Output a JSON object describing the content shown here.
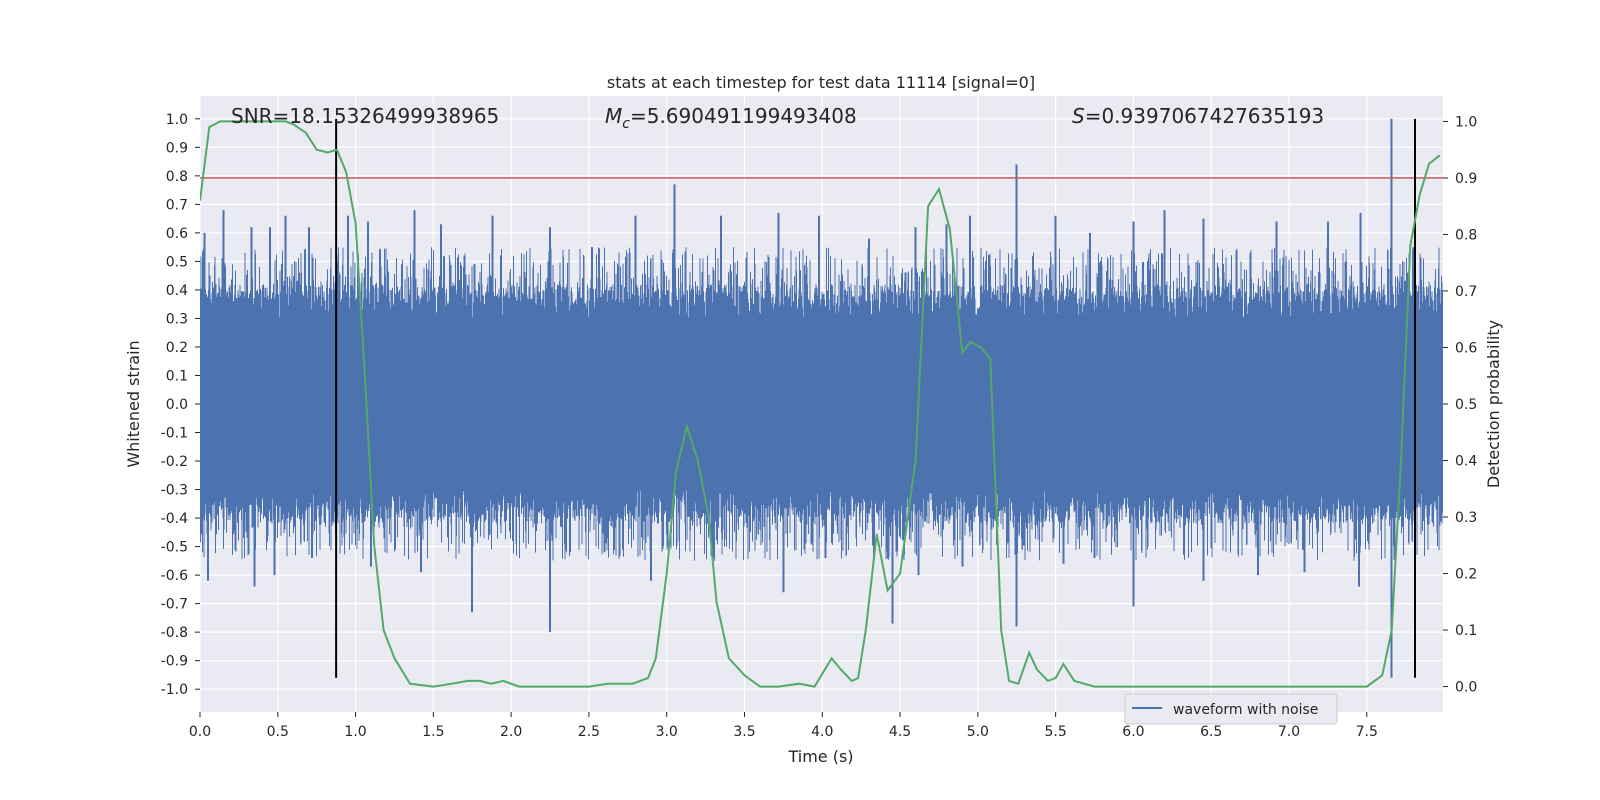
{
  "chart_data": {
    "type": "line",
    "title": "stats at each timestep for test data 11114 [signal=0]",
    "xlabel": "Time (s)",
    "ylabel": "Whitened strain",
    "y2label": "Detection probability",
    "xlim": [
      0.0,
      7.99
    ],
    "ylim": [
      -1.08,
      1.08
    ],
    "y2lim": [
      -0.045,
      1.045
    ],
    "xticks": [
      "0.0",
      "0.5",
      "1.0",
      "1.5",
      "2.0",
      "2.5",
      "3.0",
      "3.5",
      "4.0",
      "4.5",
      "5.0",
      "5.5",
      "6.0",
      "6.5",
      "7.0",
      "7.5"
    ],
    "yticks": [
      "-1.0",
      "-0.9",
      "-0.8",
      "-0.7",
      "-0.6",
      "-0.5",
      "-0.4",
      "-0.3",
      "-0.2",
      "-0.1",
      "0.0",
      "0.1",
      "0.2",
      "0.3",
      "0.4",
      "0.5",
      "0.6",
      "0.7",
      "0.8",
      "0.9",
      "1.0"
    ],
    "y2ticks": [
      "0.0",
      "0.1",
      "0.2",
      "0.3",
      "0.4",
      "0.5",
      "0.6",
      "0.7",
      "0.8",
      "0.9",
      "1.0"
    ],
    "grid": true,
    "legend": {
      "placement": "lower-right",
      "entries": [
        "waveform with noise"
      ]
    },
    "annotations": {
      "snr": "SNR=18.15326499938965",
      "mc_label": "M",
      "mc_sub": "c",
      "mc_value": "=5.690491199493408",
      "s_label": "S",
      "s_value": "=0.9397067427635193"
    },
    "threshold_line": {
      "y2": 0.9,
      "color": "#c44e52"
    },
    "vertical_lines": [
      0.875,
      7.81
    ],
    "colors": {
      "waveform": "#4c72b0",
      "probability": "#55a868",
      "threshold": "#c44e52",
      "vlines": "#000000",
      "plot_bg": "#eaeaf2"
    },
    "series": [
      {
        "name": "waveform with noise",
        "description_points": "dense noise, |strain| mostly 0.3–0.6, peaks to 1.0 near t=7.66",
        "peaks": [
          [
            0.03,
            0.6
          ],
          [
            0.15,
            0.68
          ],
          [
            0.33,
            0.62
          ],
          [
            0.45,
            0.62
          ],
          [
            0.55,
            0.66
          ],
          [
            0.7,
            0.62
          ],
          [
            0.95,
            0.66
          ],
          [
            1.08,
            0.64
          ],
          [
            1.38,
            0.68
          ],
          [
            1.55,
            0.63
          ],
          [
            1.88,
            0.66
          ],
          [
            2.25,
            0.62
          ],
          [
            2.52,
            0.55
          ],
          [
            2.8,
            0.66
          ],
          [
            3.05,
            0.77
          ],
          [
            3.35,
            0.66
          ],
          [
            3.72,
            0.67
          ],
          [
            3.98,
            0.66
          ],
          [
            4.3,
            0.58
          ],
          [
            4.6,
            0.62
          ],
          [
            4.8,
            0.63
          ],
          [
            4.95,
            0.66
          ],
          [
            5.25,
            0.84
          ],
          [
            5.5,
            0.66
          ],
          [
            5.72,
            0.6
          ],
          [
            6.0,
            0.64
          ],
          [
            6.2,
            0.68
          ],
          [
            6.45,
            0.65
          ],
          [
            6.92,
            0.64
          ],
          [
            7.25,
            0.64
          ],
          [
            7.46,
            0.67
          ],
          [
            7.66,
            1.0
          ],
          [
            7.8,
            0.55
          ]
        ],
        "troughs": [
          [
            0.05,
            -0.62
          ],
          [
            0.35,
            -0.64
          ],
          [
            0.48,
            -0.6
          ],
          [
            0.72,
            -0.54
          ],
          [
            1.1,
            -0.57
          ],
          [
            1.42,
            -0.59
          ],
          [
            1.75,
            -0.73
          ],
          [
            2.25,
            -0.8
          ],
          [
            2.6,
            -0.52
          ],
          [
            2.9,
            -0.62
          ],
          [
            3.3,
            -0.54
          ],
          [
            3.75,
            -0.66
          ],
          [
            4.02,
            -0.54
          ],
          [
            4.45,
            -0.77
          ],
          [
            4.62,
            -0.6
          ],
          [
            4.9,
            -0.57
          ],
          [
            5.25,
            -0.78
          ],
          [
            5.55,
            -0.56
          ],
          [
            5.75,
            -0.54
          ],
          [
            6.0,
            -0.71
          ],
          [
            6.45,
            -0.62
          ],
          [
            6.8,
            -0.6
          ],
          [
            7.1,
            -0.59
          ],
          [
            7.45,
            -0.64
          ],
          [
            7.66,
            -0.96
          ]
        ]
      },
      {
        "name": "",
        "axis": "right",
        "x": [
          0.0,
          0.06,
          0.13,
          0.25,
          0.4,
          0.55,
          0.6,
          0.68,
          0.75,
          0.82,
          0.88,
          0.94,
          1.0,
          1.06,
          1.12,
          1.18,
          1.25,
          1.35,
          1.5,
          1.62,
          1.72,
          1.8,
          1.87,
          1.95,
          2.05,
          2.2,
          2.4,
          2.5,
          2.62,
          2.78,
          2.88,
          2.93,
          3.0,
          3.06,
          3.13,
          3.2,
          3.27,
          3.32,
          3.4,
          3.5,
          3.6,
          3.72,
          3.85,
          3.95,
          4.06,
          4.12,
          4.19,
          4.23,
          4.28,
          4.35,
          4.42,
          4.5,
          4.6,
          4.68,
          4.75,
          4.82,
          4.86,
          4.9,
          4.95,
          5.02,
          5.08,
          5.15,
          5.2,
          5.26,
          5.33,
          5.38,
          5.45,
          5.5,
          5.55,
          5.62,
          5.75,
          5.95,
          6.1,
          6.25,
          6.5,
          6.7,
          6.8,
          6.9,
          7.2,
          7.5,
          7.6,
          7.66,
          7.72,
          7.78,
          7.84,
          7.9,
          7.97
        ],
        "values": [
          0.86,
          0.99,
          1.0,
          1.0,
          1.0,
          1.0,
          0.995,
          0.98,
          0.95,
          0.945,
          0.95,
          0.91,
          0.82,
          0.55,
          0.25,
          0.1,
          0.05,
          0.005,
          0.0,
          0.005,
          0.01,
          0.01,
          0.005,
          0.01,
          0.0,
          0.0,
          0.0,
          0.0,
          0.005,
          0.005,
          0.015,
          0.05,
          0.2,
          0.38,
          0.46,
          0.4,
          0.3,
          0.15,
          0.05,
          0.02,
          0.0,
          0.0,
          0.005,
          0.0,
          0.05,
          0.03,
          0.01,
          0.015,
          0.1,
          0.27,
          0.17,
          0.2,
          0.4,
          0.85,
          0.88,
          0.81,
          0.7,
          0.59,
          0.61,
          0.6,
          0.58,
          0.1,
          0.01,
          0.005,
          0.06,
          0.03,
          0.01,
          0.015,
          0.04,
          0.01,
          0.0,
          0.0,
          0.0,
          0.0,
          0.0,
          0.0,
          0.0,
          0.0,
          0.0,
          0.0,
          0.02,
          0.1,
          0.4,
          0.78,
          0.87,
          0.925,
          0.94
        ]
      }
    ]
  }
}
